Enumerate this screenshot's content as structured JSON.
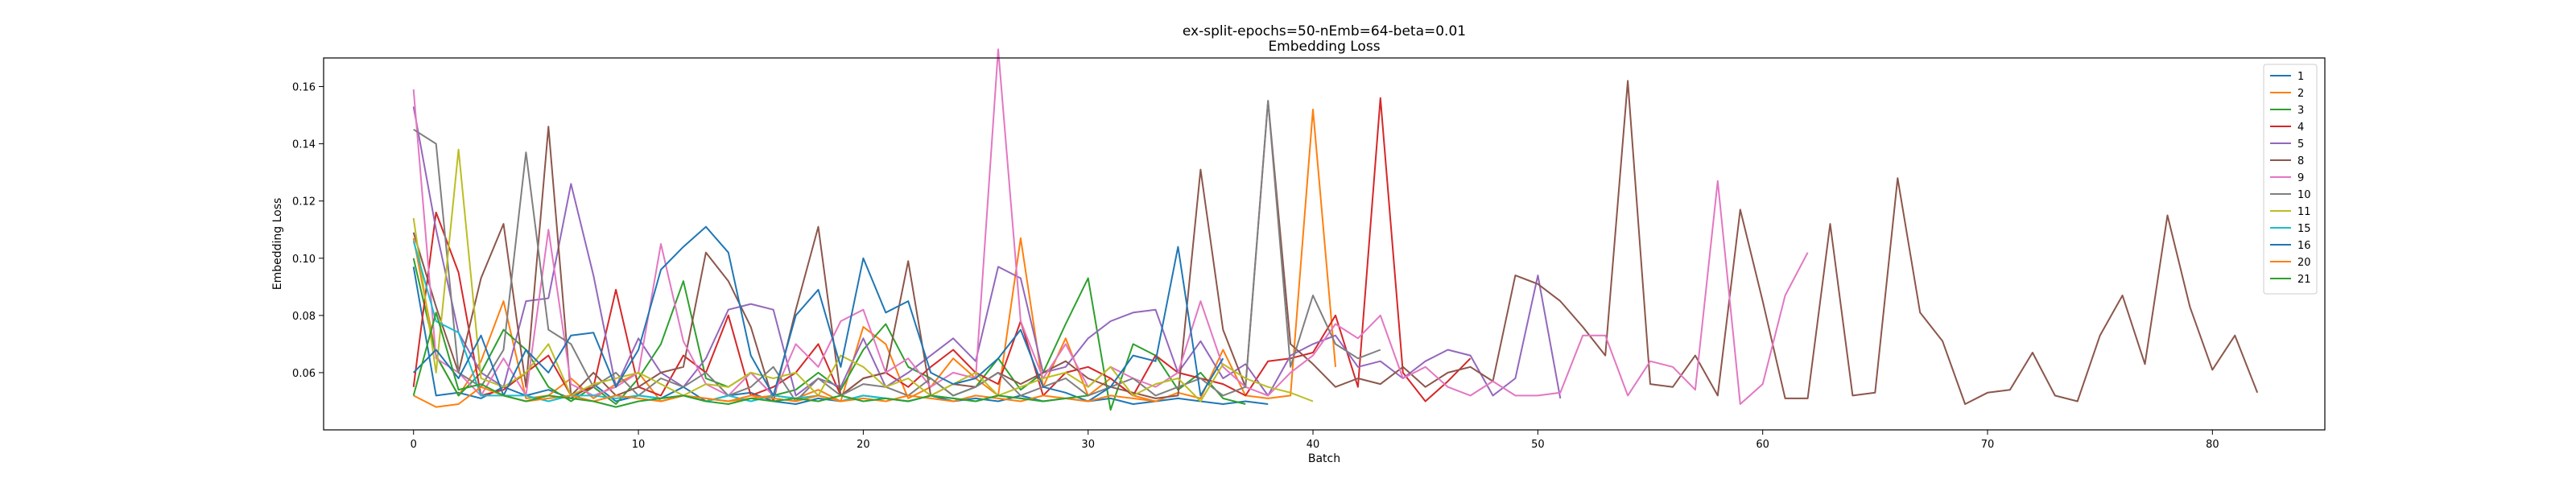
{
  "chart_data": {
    "type": "line",
    "title": "ex-split-epochs=50-nEmb=64-beta=0.01",
    "subtitle": "Embedding Loss",
    "xlabel": "Batch",
    "ylabel": "Embedding Loss",
    "xlim": [
      -4,
      85
    ],
    "ylim": [
      0.04,
      0.17
    ],
    "xticks": [
      0,
      10,
      20,
      30,
      40,
      50,
      60,
      70,
      80
    ],
    "yticks": [
      0.06,
      0.08,
      0.1,
      0.12,
      0.14,
      0.16
    ],
    "ytick_labels": [
      "0.06",
      "0.08",
      "0.10",
      "0.12",
      "0.14",
      "0.16"
    ],
    "grid": false,
    "legend_position": "top-right",
    "series": [
      {
        "name": "1",
        "color": "#1f77b4",
        "values": [
          0.097,
          0.052,
          0.053,
          0.051,
          0.055,
          0.052,
          0.054,
          0.051,
          0.056,
          0.05,
          0.052,
          0.051,
          0.055,
          0.05,
          0.052,
          0.053,
          0.05,
          0.049,
          0.051,
          0.05,
          0.052,
          0.051,
          0.05,
          0.052,
          0.05,
          0.051,
          0.05,
          0.052,
          0.05,
          0.051,
          0.05,
          0.051,
          0.049,
          0.05,
          0.051,
          0.05,
          0.049,
          0.05,
          0.049
        ]
      },
      {
        "name": "2",
        "color": "#ff7f0e",
        "values": [
          0.107,
          0.066,
          0.052,
          0.064,
          0.085,
          0.051,
          0.052,
          0.058,
          0.051,
          0.056,
          0.06,
          0.05,
          0.052,
          0.051,
          0.05,
          0.051,
          0.052,
          0.051,
          0.054,
          0.05,
          0.076,
          0.07,
          0.051,
          0.055,
          0.065,
          0.058,
          0.052,
          0.107,
          0.055,
          0.072,
          0.052,
          0.058,
          0.052,
          0.05,
          0.053,
          0.051,
          0.068,
          0.052,
          0.051,
          0.052,
          0.152,
          0.062
        ]
      },
      {
        "name": "3",
        "color": "#2ca02c",
        "values": [
          0.1,
          0.066,
          0.052,
          0.06,
          0.075,
          0.068,
          0.055,
          0.05,
          0.055,
          0.049,
          0.058,
          0.07,
          0.092,
          0.058,
          0.055,
          0.06,
          0.052,
          0.054,
          0.06,
          0.054,
          0.068,
          0.077,
          0.062,
          0.058,
          0.052,
          0.055,
          0.065,
          0.054,
          0.06,
          0.077,
          0.093,
          0.047,
          0.07,
          0.066,
          0.054,
          0.06,
          0.051,
          0.049
        ]
      },
      {
        "name": "4",
        "color": "#d62728",
        "values": [
          0.055,
          0.116,
          0.095,
          0.052,
          0.054,
          0.06,
          0.066,
          0.052,
          0.055,
          0.089,
          0.055,
          0.052,
          0.066,
          0.06,
          0.08,
          0.052,
          0.055,
          0.06,
          0.07,
          0.052,
          0.058,
          0.06,
          0.055,
          0.062,
          0.068,
          0.06,
          0.056,
          0.078,
          0.052,
          0.06,
          0.062,
          0.058,
          0.052,
          0.066,
          0.06,
          0.058,
          0.056,
          0.052,
          0.064,
          0.065,
          0.067,
          0.08,
          0.055,
          0.156,
          0.06,
          0.05,
          0.057,
          0.065
        ]
      },
      {
        "name": "5",
        "color": "#9467bd",
        "values": [
          0.153,
          0.11,
          0.074,
          0.06,
          0.055,
          0.085,
          0.086,
          0.126,
          0.094,
          0.055,
          0.072,
          0.06,
          0.055,
          0.065,
          0.082,
          0.084,
          0.082,
          0.052,
          0.058,
          0.055,
          0.072,
          0.055,
          0.06,
          0.066,
          0.072,
          0.064,
          0.097,
          0.093,
          0.06,
          0.062,
          0.072,
          0.078,
          0.081,
          0.082,
          0.06,
          0.071,
          0.058,
          0.063,
          0.052,
          0.066,
          0.07,
          0.073,
          0.062,
          0.064,
          0.058,
          0.064,
          0.068,
          0.066,
          0.052,
          0.058,
          0.094,
          0.051
        ]
      },
      {
        "name": "8",
        "color": "#8c564b",
        "values": [
          0.109,
          0.083,
          0.06,
          0.093,
          0.112,
          0.055,
          0.146,
          0.052,
          0.06,
          0.052,
          0.055,
          0.06,
          0.062,
          0.102,
          0.092,
          0.076,
          0.05,
          0.082,
          0.111,
          0.052,
          0.058,
          0.06,
          0.099,
          0.052,
          0.056,
          0.055,
          0.06,
          0.056,
          0.06,
          0.064,
          0.058,
          0.055,
          0.053,
          0.051,
          0.052,
          0.131,
          0.075,
          0.055,
          0.155,
          0.07,
          0.063,
          0.055,
          0.058,
          0.056,
          0.062,
          0.055,
          0.06,
          0.062,
          0.057,
          0.094,
          0.091,
          0.085,
          0.076,
          0.066,
          0.162,
          0.056,
          0.055,
          0.066,
          0.052,
          0.117,
          0.085,
          0.051,
          0.051,
          0.112,
          0.052,
          0.053,
          0.128,
          0.081,
          0.071,
          0.049,
          0.053,
          0.054,
          0.067,
          0.052,
          0.05,
          0.073,
          0.087,
          0.063,
          0.115,
          0.083,
          0.061,
          0.073,
          0.053
        ]
      },
      {
        "name": "9",
        "color": "#e377c2",
        "values": [
          0.159,
          0.065,
          0.06,
          0.052,
          0.065,
          0.052,
          0.11,
          0.056,
          0.052,
          0.055,
          0.06,
          0.105,
          0.071,
          0.056,
          0.052,
          0.06,
          0.052,
          0.07,
          0.062,
          0.078,
          0.082,
          0.06,
          0.065,
          0.055,
          0.06,
          0.058,
          0.173,
          0.078,
          0.058,
          0.07,
          0.055,
          0.062,
          0.058,
          0.055,
          0.06,
          0.085,
          0.062,
          0.055,
          0.052,
          0.06,
          0.066,
          0.077,
          0.072,
          0.08,
          0.058,
          0.062,
          0.055,
          0.052,
          0.057,
          0.052,
          0.052,
          0.053,
          0.073,
          0.073,
          0.052,
          0.064,
          0.062,
          0.054,
          0.127,
          0.049,
          0.056,
          0.087,
          0.102
        ]
      },
      {
        "name": "10",
        "color": "#7f7f7f",
        "values": [
          0.145,
          0.14,
          0.06,
          0.055,
          0.068,
          0.137,
          0.075,
          0.07,
          0.055,
          0.06,
          0.052,
          0.058,
          0.055,
          0.06,
          0.052,
          0.055,
          0.062,
          0.05,
          0.058,
          0.052,
          0.056,
          0.055,
          0.052,
          0.058,
          0.052,
          0.055,
          0.06,
          0.052,
          0.055,
          0.058,
          0.052,
          0.055,
          0.058,
          0.052,
          0.055,
          0.058,
          0.052,
          0.055,
          0.155,
          0.062,
          0.087,
          0.07,
          0.065,
          0.068
        ]
      },
      {
        "name": "11",
        "color": "#bcbd22",
        "values": [
          0.114,
          0.06,
          0.138,
          0.058,
          0.055,
          0.06,
          0.07,
          0.052,
          0.056,
          0.058,
          0.06,
          0.056,
          0.052,
          0.056,
          0.055,
          0.06,
          0.058,
          0.06,
          0.052,
          0.066,
          0.062,
          0.055,
          0.058,
          0.052,
          0.056,
          0.06,
          0.052,
          0.055,
          0.058,
          0.06,
          0.055,
          0.062,
          0.052,
          0.056,
          0.058,
          0.05,
          0.063,
          0.058,
          0.055,
          0.053,
          0.05
        ]
      },
      {
        "name": "15",
        "color": "#17becf",
        "values": [
          0.106,
          0.078,
          0.074,
          0.052,
          0.052,
          0.052,
          0.05,
          0.052,
          0.052,
          0.051,
          0.052,
          0.051,
          0.052,
          0.05,
          0.052,
          0.05,
          0.052,
          0.051,
          0.052,
          0.05,
          0.052,
          0.051,
          0.05,
          0.052,
          0.051,
          0.05,
          0.052,
          0.051,
          0.05
        ]
      },
      {
        "name": "16",
        "color": "#1f77b4",
        "values": [
          0.06,
          0.068,
          0.058,
          0.073,
          0.052,
          0.068,
          0.06,
          0.073,
          0.074,
          0.055,
          0.068,
          0.096,
          0.104,
          0.111,
          0.102,
          0.066,
          0.052,
          0.08,
          0.089,
          0.062,
          0.1,
          0.081,
          0.085,
          0.06,
          0.056,
          0.058,
          0.065,
          0.075,
          0.055,
          0.053,
          0.05,
          0.055,
          0.066,
          0.064,
          0.104,
          0.052,
          0.065
        ]
      },
      {
        "name": "20",
        "color": "#ff7f0e",
        "values": [
          0.052,
          0.048,
          0.049,
          0.055,
          0.052,
          0.05,
          0.051,
          0.052,
          0.05,
          0.052,
          0.051,
          0.05,
          0.052,
          0.051,
          0.05,
          0.052,
          0.051,
          0.05,
          0.052,
          0.05,
          0.051,
          0.05,
          0.052,
          0.051,
          0.05,
          0.052,
          0.051,
          0.05,
          0.052,
          0.051,
          0.05,
          0.052,
          0.051,
          0.05
        ]
      },
      {
        "name": "21",
        "color": "#2ca02c",
        "values": [
          0.052,
          0.081,
          0.054,
          0.056,
          0.052,
          0.05,
          0.052,
          0.051,
          0.05,
          0.048,
          0.05,
          0.051,
          0.052,
          0.05,
          0.049,
          0.051,
          0.05,
          0.051,
          0.05,
          0.052,
          0.05,
          0.051,
          0.05,
          0.052,
          0.051,
          0.05,
          0.052,
          0.051,
          0.05,
          0.051,
          0.052
        ]
      }
    ]
  }
}
